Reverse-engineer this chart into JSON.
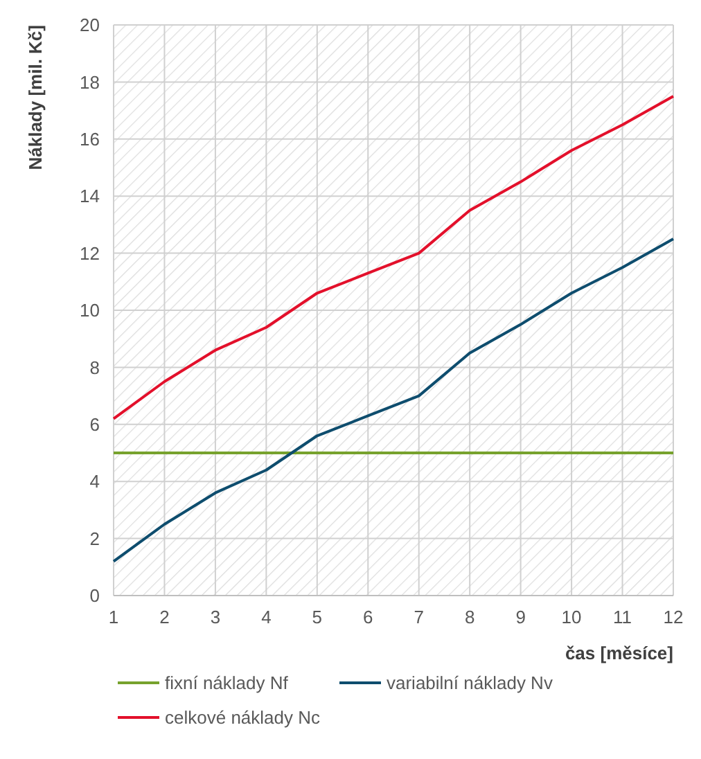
{
  "chart_data": {
    "type": "line",
    "xlabel": "čas [měsíce]",
    "ylabel": "Náklady [mil. Kč]",
    "x": [
      1,
      2,
      3,
      4,
      5,
      6,
      7,
      8,
      9,
      10,
      11,
      12
    ],
    "series": [
      {
        "name": "fixní náklady Nf",
        "color": "#77a22d",
        "values": [
          5,
          5,
          5,
          5,
          5,
          5,
          5,
          5,
          5,
          5,
          5,
          5
        ]
      },
      {
        "name": "variabilní náklady Nv",
        "color": "#0e4d6e",
        "values": [
          1.2,
          2.5,
          3.6,
          4.4,
          5.6,
          6.3,
          7.0,
          8.5,
          9.5,
          10.6,
          11.5,
          12.5
        ]
      },
      {
        "name": "celkové náklady Nc",
        "color": "#e3102b",
        "values": [
          6.2,
          7.5,
          8.6,
          9.4,
          10.6,
          11.3,
          12.0,
          13.5,
          14.5,
          15.6,
          16.5,
          17.5
        ]
      }
    ],
    "xlim": [
      1,
      12
    ],
    "xticks": [
      1,
      2,
      3,
      4,
      5,
      6,
      7,
      8,
      9,
      10,
      11,
      12
    ],
    "ylim": [
      0,
      20
    ],
    "yticks": [
      0,
      2,
      4,
      6,
      8,
      10,
      12,
      14,
      16,
      18,
      20
    ],
    "grid": true,
    "legend": "bottom",
    "marker": "none",
    "line_style": "solid"
  }
}
